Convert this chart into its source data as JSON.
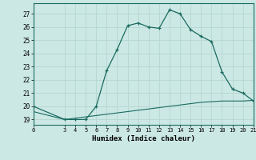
{
  "xlabel": "Humidex (Indice chaleur)",
  "bg_color": "#cce8e4",
  "grid_color": "#b8d8d2",
  "line_color": "#1a6b60",
  "curve1_x": [
    0,
    3,
    4,
    5,
    6,
    7,
    8,
    9,
    10,
    11,
    12,
    13,
    14,
    15,
    16,
    17,
    18,
    19,
    20,
    21
  ],
  "curve1_y": [
    20.0,
    19.0,
    19.0,
    19.0,
    20.0,
    22.7,
    24.3,
    26.1,
    26.3,
    26.0,
    25.9,
    27.3,
    27.0,
    25.8,
    25.3,
    24.9,
    22.6,
    21.3,
    21.0,
    20.4
  ],
  "curve2_x": [
    0,
    3,
    4,
    5,
    6,
    7,
    8,
    9,
    10,
    11,
    12,
    13,
    14,
    15,
    16,
    17,
    18,
    19,
    20,
    21
  ],
  "curve2_y": [
    19.6,
    19.0,
    19.1,
    19.2,
    19.3,
    19.4,
    19.5,
    19.6,
    19.7,
    19.8,
    19.9,
    20.0,
    20.1,
    20.2,
    20.3,
    20.35,
    20.4,
    20.4,
    20.4,
    20.45
  ],
  "xlim": [
    0,
    21
  ],
  "ylim": [
    18.6,
    27.8
  ],
  "yticks": [
    19,
    20,
    21,
    22,
    23,
    24,
    25,
    26,
    27
  ],
  "xticks": [
    0,
    3,
    4,
    5,
    6,
    7,
    8,
    9,
    10,
    11,
    12,
    13,
    14,
    15,
    16,
    17,
    18,
    19,
    20,
    21
  ]
}
